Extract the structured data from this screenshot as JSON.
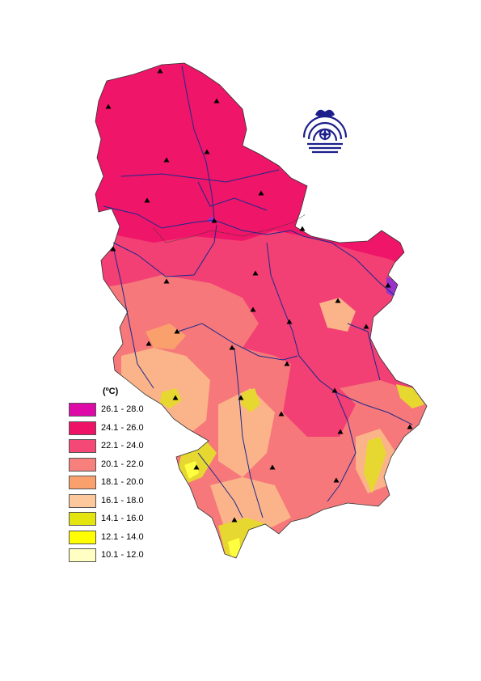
{
  "map": {
    "colors": {
      "region_north": "#ef1568",
      "region_central": "#f23f74",
      "region_south": "#f6787a",
      "highland": "#fbb489",
      "mountain": "#e6d830",
      "peak": "#ffff40",
      "lake": "#9933cc",
      "river": "#1a2a8c",
      "border": "#333333",
      "station": "#000000"
    },
    "stations_count": 30
  },
  "legend": {
    "unit": "(ºC)",
    "classes": [
      {
        "label": "26.1 - 28.0",
        "color": "#dd0aa8"
      },
      {
        "label": "24.1 - 26.0",
        "color": "#ee1366"
      },
      {
        "label": "22.1 - 24.0",
        "color": "#f44877"
      },
      {
        "label": "20.1 - 22.0",
        "color": "#f7807c"
      },
      {
        "label": "18.1 - 20.0",
        "color": "#f9a06d"
      },
      {
        "label": "16.1 - 18.0",
        "color": "#fcc89c"
      },
      {
        "label": "14.1 - 16.0",
        "color": "#e4e40e"
      },
      {
        "label": "12.1 - 14.0",
        "color": "#ffff00"
      },
      {
        "label": "10.1 - 12.0",
        "color": "#ffffc4"
      }
    ]
  },
  "logo": {
    "icon": "hydrometeorological-service-emblem-icon",
    "color": "#1c1f8c"
  }
}
